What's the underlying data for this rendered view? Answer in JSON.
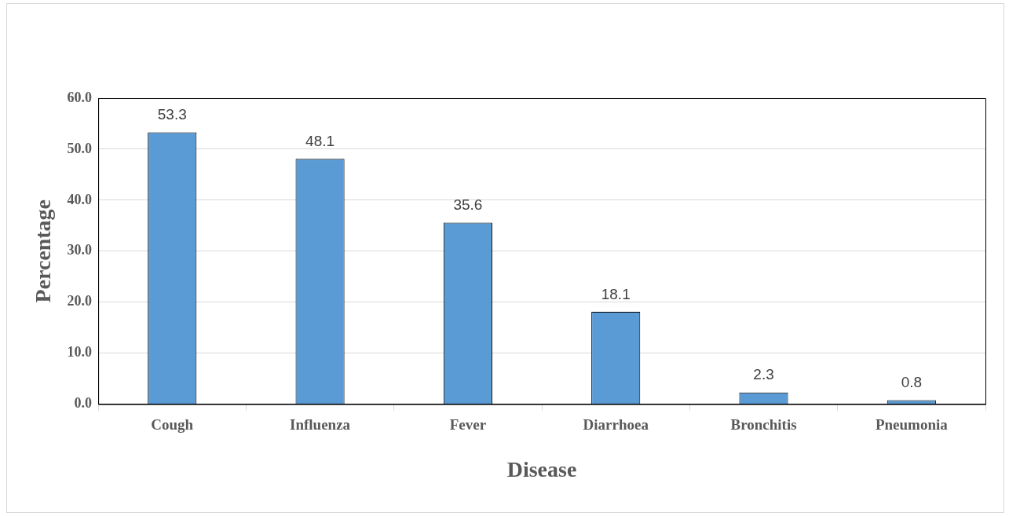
{
  "chart_data": {
    "type": "bar",
    "xlabel": "Disease",
    "ylabel": "Percentage",
    "categories": [
      "Cough",
      "Influenza",
      "Fever",
      "Diarrhoea",
      "Bronchitis",
      "Pneumonia"
    ],
    "values": [
      53.3,
      48.1,
      35.6,
      18.1,
      2.3,
      0.8
    ],
    "color": "#5b9bd5",
    "ylim": [
      0,
      60
    ],
    "yticks": [
      {
        "value": 0,
        "label": "0.0"
      },
      {
        "value": 10,
        "label": "10.0"
      },
      {
        "value": 20,
        "label": "20.0"
      },
      {
        "value": 30,
        "label": "30.0"
      },
      {
        "value": 40,
        "label": "40.0"
      },
      {
        "value": 50,
        "label": "50.0"
      },
      {
        "value": 60,
        "label": "60.0"
      }
    ],
    "grid": "y",
    "data_labels": true,
    "legend": false
  }
}
